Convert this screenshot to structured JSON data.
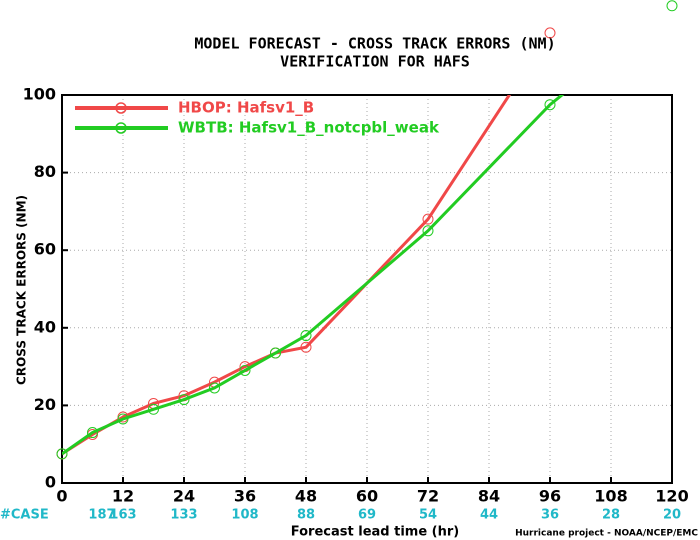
{
  "chart_data": {
    "type": "line",
    "title": "MODEL FORECAST - CROSS TRACK ERRORS (NM)",
    "subtitle": "VERIFICATION FOR HAFS",
    "x_label": "Forecast lead time (hr)",
    "y_label": "CROSS TRACK ERRORS (NM)",
    "x": [
      0,
      6,
      12,
      18,
      24,
      30,
      36,
      42,
      48,
      72,
      96,
      120
    ],
    "series": [
      {
        "name": "HBOP: Hafsv1_B",
        "color": "#f04848",
        "values": [
          7.5,
          12.5,
          17,
          20.5,
          22.5,
          26,
          30,
          33.5,
          35,
          68,
          116,
          null
        ]
      },
      {
        "name": "WBTB: Hafsv1_B_notcpbl_weak",
        "color": "#22cc22",
        "values": [
          7.5,
          13,
          16.5,
          19,
          21.5,
          24.5,
          29,
          33.5,
          38,
          65,
          97.5,
          123
        ]
      }
    ],
    "xlim": [
      0,
      120
    ],
    "xticks": [
      0,
      12,
      24,
      36,
      48,
      60,
      72,
      84,
      96,
      108,
      120
    ],
    "ylim": [
      0,
      100
    ],
    "yticks": [
      0,
      20,
      40,
      60,
      80,
      100
    ],
    "grid": true,
    "case_label": "#CASE",
    "case_counts": [
      187,
      163,
      133,
      108,
      88,
      69,
      54,
      44,
      36,
      28,
      20
    ],
    "case_color": "#20b8c8",
    "footer": "Hurricane project - NOAA/NCEP/EMC"
  }
}
